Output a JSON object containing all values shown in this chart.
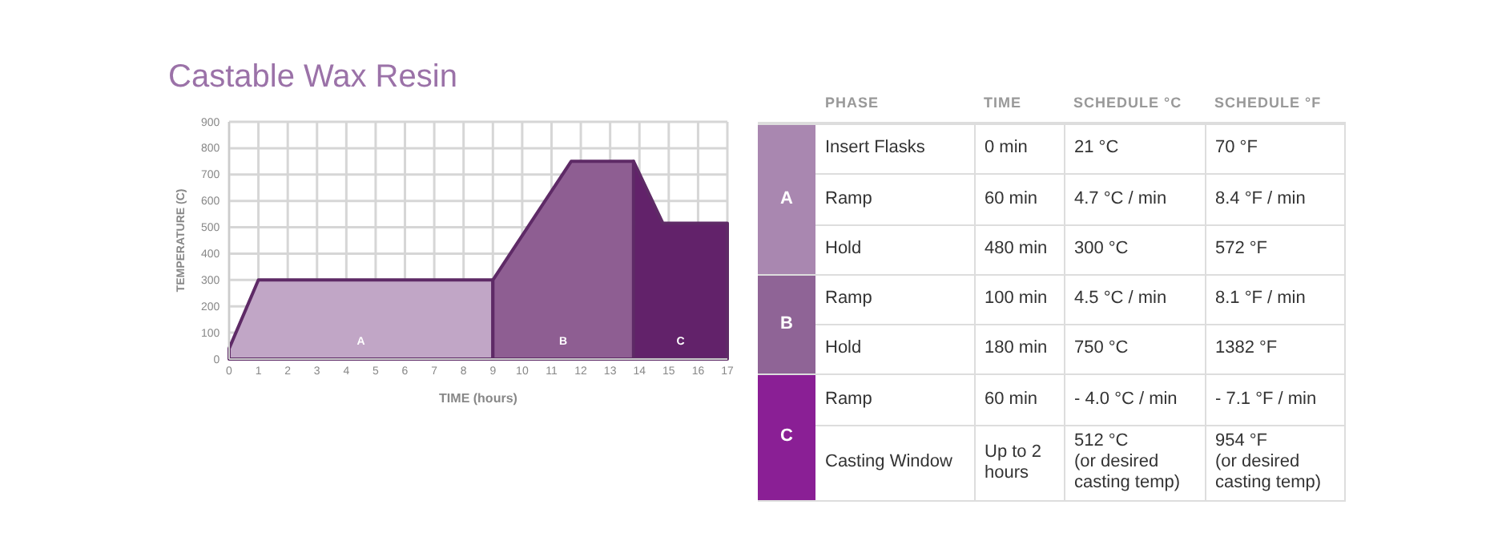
{
  "chart_data": [
    {
      "type": "area",
      "title": "Castable Wax Resin",
      "xlabel": "TIME (hours)",
      "ylabel": "TEMPERATURE (C)",
      "xlim": [
        0,
        17
      ],
      "xticks": [
        0,
        1,
        2,
        3,
        4,
        5,
        6,
        7,
        8,
        9,
        10,
        11,
        12,
        13,
        14,
        15,
        16,
        17
      ],
      "ylim": [
        0,
        900
      ],
      "yticks": [
        0,
        100,
        200,
        300,
        400,
        500,
        600,
        700,
        800,
        900
      ],
      "grid": true,
      "series": [
        {
          "name": "A",
          "color": "#c1a6c6",
          "x": [
            0,
            1,
            9
          ],
          "values": [
            40,
            300,
            300
          ]
        },
        {
          "name": "B",
          "color": "#8e5e92",
          "x": [
            9,
            11.67,
            13.8
          ],
          "values": [
            300,
            750,
            750
          ]
        },
        {
          "name": "C",
          "color": "#62226a",
          "x": [
            13.8,
            14.8,
            17
          ],
          "values": [
            750,
            515,
            515
          ]
        }
      ]
    },
    {
      "type": "other",
      "annotations": [
        "PHASE",
        "TIME",
        "SCHEDULE °C",
        "SCHEDULE °F",
        "A",
        "Insert Flasks",
        "0 min",
        "21 °C",
        "70 °F",
        "Ramp",
        "60 min",
        "4.7 °C / min",
        "8.4 °F / min",
        "Hold",
        "480 min",
        "300 °C",
        "572 °F",
        "B",
        "Ramp",
        "100 min",
        "4.5 °C / min",
        "8.1 °F / min",
        "Hold",
        "180 min",
        "750 °C",
        "1382 °F",
        "C",
        "Ramp",
        "60 min",
        "- 4.0 °C / min",
        "- 7.1 °F / min",
        "Casting Window",
        "Up to 2 hours",
        "512 °C\n(or desired casting temp)",
        "954 °F\n(or desired casting temp)"
      ]
    }
  ]
}
